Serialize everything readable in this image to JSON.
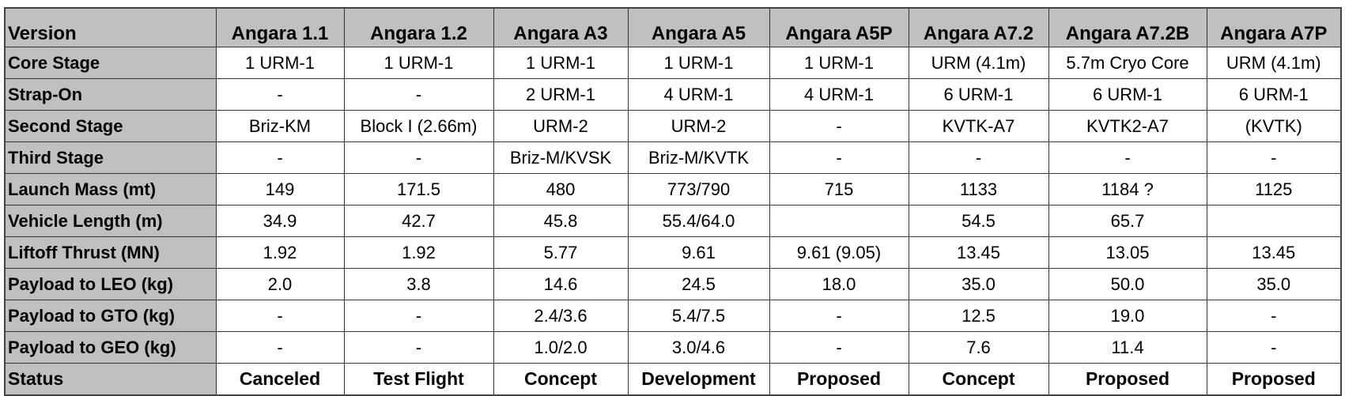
{
  "table": {
    "header": [
      "Version",
      "Angara 1.1",
      "Angara 1.2",
      "Angara A3",
      "Angara A5",
      "Angara A5P",
      "Angara A7.2",
      "Angara A7.2B",
      "Angara A7P"
    ],
    "rows": [
      [
        "Core Stage",
        "1 URM-1",
        "1 URM-1",
        "1 URM-1",
        "1 URM-1",
        "1 URM-1",
        "URM (4.1m)",
        "5.7m Cryo Core",
        "URM (4.1m)"
      ],
      [
        "Strap-On",
        "-",
        "-",
        "2 URM-1",
        "4 URM-1",
        "4 URM-1",
        "6 URM-1",
        "6 URM-1",
        "6 URM-1"
      ],
      [
        "Second Stage",
        "Briz-KM",
        "Block I (2.66m)",
        "URM-2",
        "URM-2",
        "-",
        "KVTK-A7",
        "KVTK2-A7",
        "(KVTK)"
      ],
      [
        "Third Stage",
        "-",
        "-",
        "Briz-M/KVSK",
        "Briz-M/KVTK",
        "-",
        "-",
        "-",
        "-"
      ],
      [
        "Launch Mass (mt)",
        "149",
        "171.5",
        "480",
        "773/790",
        "715",
        "1133",
        "1184 ?",
        "1125"
      ],
      [
        "Vehicle Length (m)",
        "34.9",
        "42.7",
        "45.8",
        "55.4/64.0",
        null,
        "54.5",
        "65.7",
        null
      ],
      [
        "Liftoff Thrust (MN)",
        "1.92",
        "1.92",
        "5.77",
        "9.61",
        "9.61 (9.05)",
        "13.45",
        "13.05",
        "13.45"
      ],
      [
        "Payload to LEO (kg)",
        "2.0",
        "3.8",
        "14.6",
        "24.5",
        "18.0",
        "35.0",
        "50.0",
        "35.0"
      ],
      [
        "Payload to GTO (kg)",
        "-",
        "-",
        "2.4/3.6",
        "5.4/7.5",
        "-",
        "12.5",
        "19.0",
        "-"
      ],
      [
        "Payload to GEO (kg)",
        "-",
        "-",
        "1.0/2.0",
        "3.0/4.6",
        "-",
        "7.6",
        "11.4",
        "-"
      ],
      [
        "Status",
        "Canceled",
        "Test Flight",
        "Concept",
        "Development",
        "Proposed",
        "Concept",
        "Proposed",
        "Proposed"
      ]
    ]
  }
}
